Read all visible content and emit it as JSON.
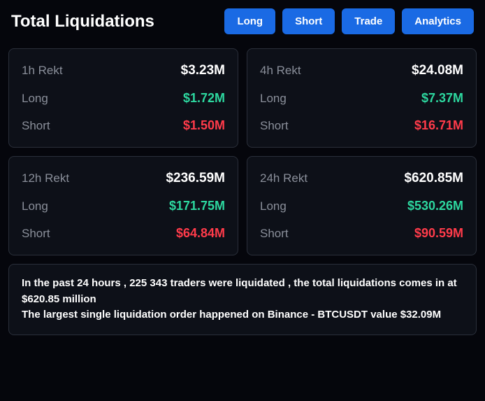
{
  "header": {
    "title": "Total Liquidations",
    "buttons": {
      "long": "Long",
      "short": "Short",
      "trade": "Trade",
      "analytics": "Analytics"
    }
  },
  "cards": [
    {
      "period": "1h Rekt",
      "total": "$3.23M",
      "long": "$1.72M",
      "short": "$1.50M"
    },
    {
      "period": "4h Rekt",
      "total": "$24.08M",
      "long": "$7.37M",
      "short": "$16.71M"
    },
    {
      "period": "12h Rekt",
      "total": "$236.59M",
      "long": "$171.75M",
      "short": "$64.84M"
    },
    {
      "period": "24h Rekt",
      "total": "$620.85M",
      "long": "$530.26M",
      "short": "$90.59M"
    }
  ],
  "labels": {
    "long": "Long",
    "short": "Short"
  },
  "summary": {
    "line1": "In the past 24 hours , 225 343 traders were liquidated , the total liquidations comes in at $620.85 million",
    "line2": "The largest single liquidation order happened on Binance - BTCUSDT value $32.09M"
  },
  "style": {
    "bg": "#05060c",
    "card_bg": "#0d1018",
    "card_border": "#2a2f3a",
    "btn_bg": "#1a6ae4",
    "text_white": "#ffffff",
    "text_muted": "#8a8f9a",
    "text_green": "#2dd79f",
    "text_red": "#ff3b4a"
  }
}
